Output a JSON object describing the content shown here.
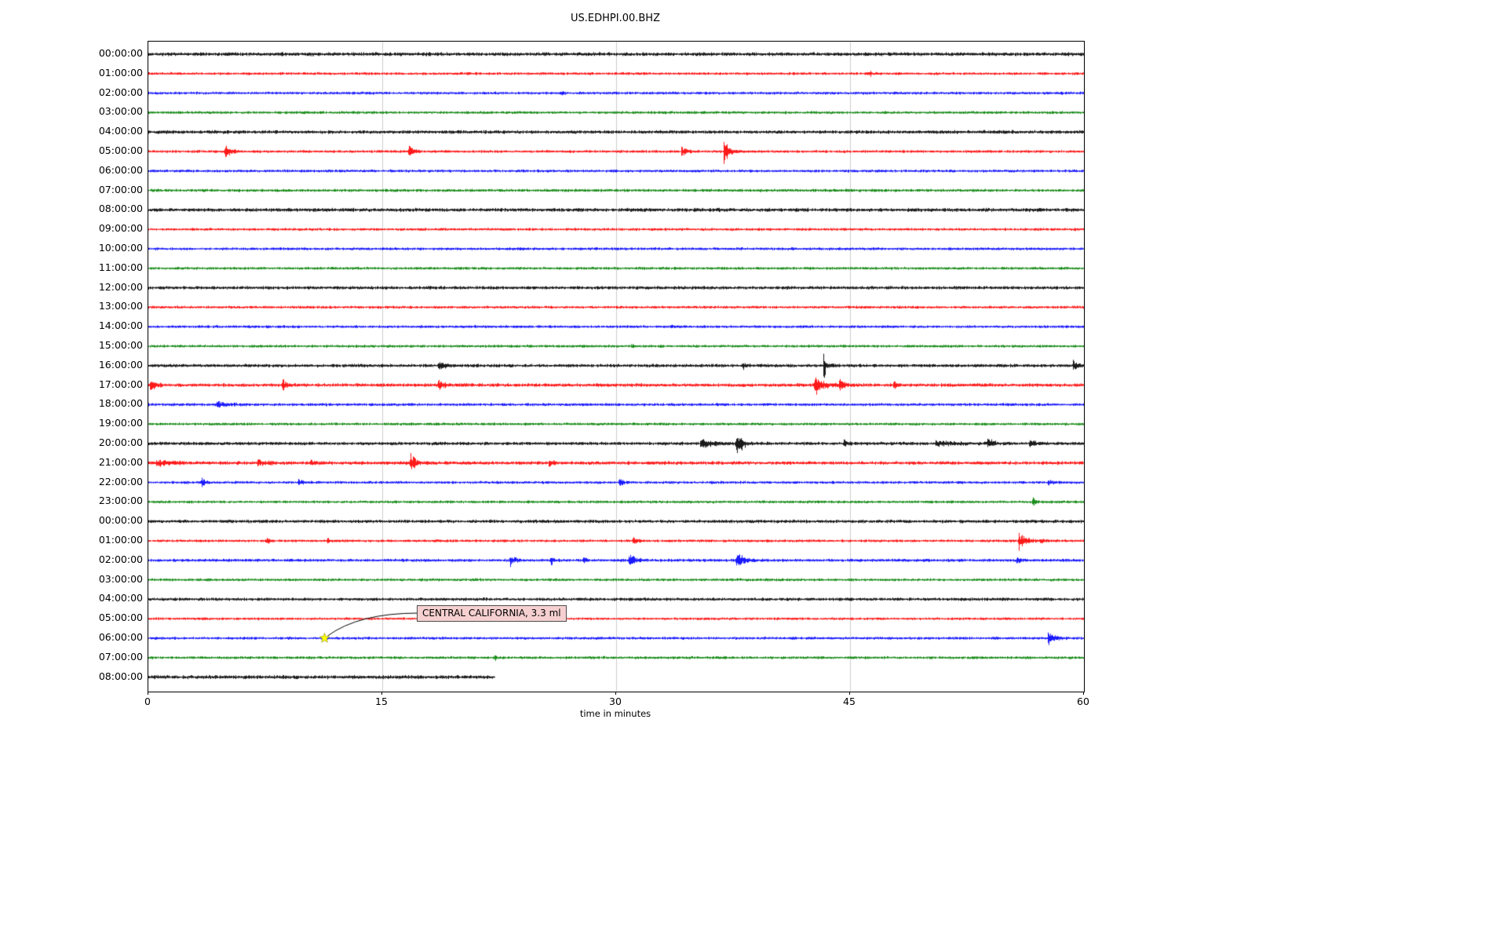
{
  "title": "US.EDHPI.00.BHZ",
  "xlabel": "time in minutes",
  "chart_data": {
    "type": "line",
    "subtype": "seismogram-dayplot",
    "title": "US.EDHPI.00.BHZ",
    "xlabel": "time in minutes",
    "x_range": [
      0,
      60
    ],
    "x_ticks": [
      0,
      15,
      30,
      45,
      60
    ],
    "grid_minutes": [
      15,
      30,
      45
    ],
    "grid_color": "#cccccc",
    "row_color_cycle": [
      "#000000",
      "#ff0000",
      "#0000ff",
      "#008000"
    ],
    "rows": [
      {
        "label": "00:00:00",
        "color": "#000000",
        "noise": 2.0
      },
      {
        "label": "01:00:00",
        "color": "#ff0000",
        "noise": 1.5,
        "events": [
          {
            "m": 46.3,
            "amp": 3,
            "dur": 0.3
          }
        ]
      },
      {
        "label": "02:00:00",
        "color": "#0000ff",
        "noise": 1.5,
        "events": [
          {
            "m": 26.5,
            "amp": 4,
            "dur": 0.3
          }
        ]
      },
      {
        "label": "03:00:00",
        "color": "#008000",
        "noise": 1.5
      },
      {
        "label": "04:00:00",
        "color": "#000000",
        "noise": 1.9
      },
      {
        "label": "05:00:00",
        "color": "#ff0000",
        "noise": 1.5,
        "events": [
          {
            "m": 4.9,
            "amp": 13,
            "dur": 0.8
          },
          {
            "m": 16.7,
            "amp": 12,
            "dur": 0.6
          },
          {
            "m": 34.2,
            "amp": 8,
            "dur": 0.8
          },
          {
            "m": 36.9,
            "amp": 20,
            "dur": 0.7
          }
        ]
      },
      {
        "label": "06:00:00",
        "color": "#0000ff",
        "noise": 1.5
      },
      {
        "label": "07:00:00",
        "color": "#008000",
        "noise": 1.6
      },
      {
        "label": "08:00:00",
        "color": "#000000",
        "noise": 2.0
      },
      {
        "label": "09:00:00",
        "color": "#ff0000",
        "noise": 1.5
      },
      {
        "label": "10:00:00",
        "color": "#0000ff",
        "noise": 1.5
      },
      {
        "label": "11:00:00",
        "color": "#008000",
        "noise": 1.5
      },
      {
        "label": "12:00:00",
        "color": "#000000",
        "noise": 1.8
      },
      {
        "label": "13:00:00",
        "color": "#ff0000",
        "noise": 1.5
      },
      {
        "label": "14:00:00",
        "color": "#0000ff",
        "noise": 1.5,
        "events": [
          {
            "m": 33.5,
            "amp": 3,
            "dur": 0.3
          }
        ]
      },
      {
        "label": "15:00:00",
        "color": "#008000",
        "noise": 1.5,
        "events": [
          {
            "m": 31.0,
            "amp": 3,
            "dur": 0.4
          }
        ]
      },
      {
        "label": "16:00:00",
        "color": "#000000",
        "noise": 1.8,
        "events": [
          {
            "m": 18.6,
            "amp": 4,
            "dur": 1.2
          },
          {
            "m": 38.1,
            "amp": 7,
            "dur": 0.5
          },
          {
            "m": 43.3,
            "amp": 18,
            "dur": 0.5
          },
          {
            "m": 59.3,
            "amp": 9,
            "dur": 0.7
          }
        ]
      },
      {
        "label": "17:00:00",
        "color": "#ff0000",
        "noise": 1.9,
        "events": [
          {
            "m": 0.1,
            "amp": 11,
            "dur": 0.8
          },
          {
            "m": 8.6,
            "amp": 9,
            "dur": 0.6
          },
          {
            "m": 18.6,
            "amp": 8,
            "dur": 0.8
          },
          {
            "m": 42.7,
            "amp": 14,
            "dur": 1.4
          },
          {
            "m": 44.3,
            "amp": 8,
            "dur": 0.8
          },
          {
            "m": 47.8,
            "amp": 6,
            "dur": 0.5
          }
        ]
      },
      {
        "label": "18:00:00",
        "color": "#0000ff",
        "noise": 1.6,
        "events": [
          {
            "m": 4.3,
            "amp": 5,
            "dur": 2.0
          }
        ]
      },
      {
        "label": "19:00:00",
        "color": "#008000",
        "noise": 1.5
      },
      {
        "label": "20:00:00",
        "color": "#000000",
        "noise": 1.8,
        "events": [
          {
            "m": 35.4,
            "amp": 7,
            "dur": 1.6
          },
          {
            "m": 37.7,
            "amp": 24,
            "dur": 0.8
          },
          {
            "m": 44.6,
            "amp": 7,
            "dur": 0.6
          },
          {
            "m": 50.5,
            "amp": 4,
            "dur": 3.0
          },
          {
            "m": 53.8,
            "amp": 8,
            "dur": 0.8
          },
          {
            "m": 56.5,
            "amp": 5,
            "dur": 1.2
          }
        ]
      },
      {
        "label": "21:00:00",
        "color": "#ff0000",
        "noise": 1.9,
        "events": [
          {
            "m": 0.5,
            "amp": 4,
            "dur": 3.0
          },
          {
            "m": 7.0,
            "amp": 5,
            "dur": 1.2
          },
          {
            "m": 10.4,
            "amp": 5,
            "dur": 0.8
          },
          {
            "m": 16.8,
            "amp": 16,
            "dur": 0.7
          },
          {
            "m": 25.7,
            "amp": 7,
            "dur": 0.5
          }
        ]
      },
      {
        "label": "22:00:00",
        "color": "#0000ff",
        "noise": 1.5,
        "events": [
          {
            "m": 3.4,
            "amp": 6,
            "dur": 0.8
          },
          {
            "m": 9.6,
            "amp": 6,
            "dur": 0.6
          },
          {
            "m": 30.2,
            "amp": 9,
            "dur": 0.6
          },
          {
            "m": 57.7,
            "amp": 5,
            "dur": 0.8
          }
        ]
      },
      {
        "label": "23:00:00",
        "color": "#008000",
        "noise": 1.5,
        "events": [
          {
            "m": 56.7,
            "amp": 8,
            "dur": 0.4
          }
        ]
      },
      {
        "label": "00:00:00",
        "color": "#000000",
        "noise": 1.8
      },
      {
        "label": "01:00:00",
        "color": "#ff0000",
        "noise": 1.5,
        "events": [
          {
            "m": 7.6,
            "amp": 6,
            "dur": 0.4
          },
          {
            "m": 11.5,
            "amp": 7,
            "dur": 0.4
          },
          {
            "m": 31.1,
            "amp": 8,
            "dur": 0.5
          },
          {
            "m": 55.8,
            "amp": 14,
            "dur": 0.9
          },
          {
            "m": 57.2,
            "amp": 6,
            "dur": 0.5
          }
        ]
      },
      {
        "label": "02:00:00",
        "color": "#0000ff",
        "noise": 1.6,
        "events": [
          {
            "m": 23.2,
            "amp": 8,
            "dur": 0.8
          },
          {
            "m": 25.8,
            "amp": 7,
            "dur": 0.5
          },
          {
            "m": 27.9,
            "amp": 6,
            "dur": 0.5
          },
          {
            "m": 30.8,
            "amp": 11,
            "dur": 1.0
          },
          {
            "m": 37.7,
            "amp": 12,
            "dur": 1.2
          },
          {
            "m": 55.7,
            "amp": 6,
            "dur": 0.5
          }
        ]
      },
      {
        "label": "03:00:00",
        "color": "#008000",
        "noise": 1.5
      },
      {
        "label": "04:00:00",
        "color": "#000000",
        "noise": 1.7
      },
      {
        "label": "05:00:00",
        "color": "#ff0000",
        "noise": 1.4
      },
      {
        "label": "06:00:00",
        "color": "#0000ff",
        "noise": 1.5,
        "events": [
          {
            "m": 57.7,
            "amp": 11,
            "dur": 1.0
          }
        ]
      },
      {
        "label": "07:00:00",
        "color": "#008000",
        "noise": 1.5,
        "events": [
          {
            "m": 22.2,
            "amp": 4,
            "dur": 0.3
          }
        ]
      },
      {
        "label": "08:00:00",
        "color": "#000000",
        "noise": 2.0,
        "end_minute": 22.2
      }
    ],
    "annotation": {
      "text": "CENTRAL CALIFORNIA, 3.3 ml",
      "row_index": 30,
      "row_label": "06:00:00",
      "minute": 11.3,
      "marker": "star",
      "marker_color": "#ffff00"
    }
  }
}
